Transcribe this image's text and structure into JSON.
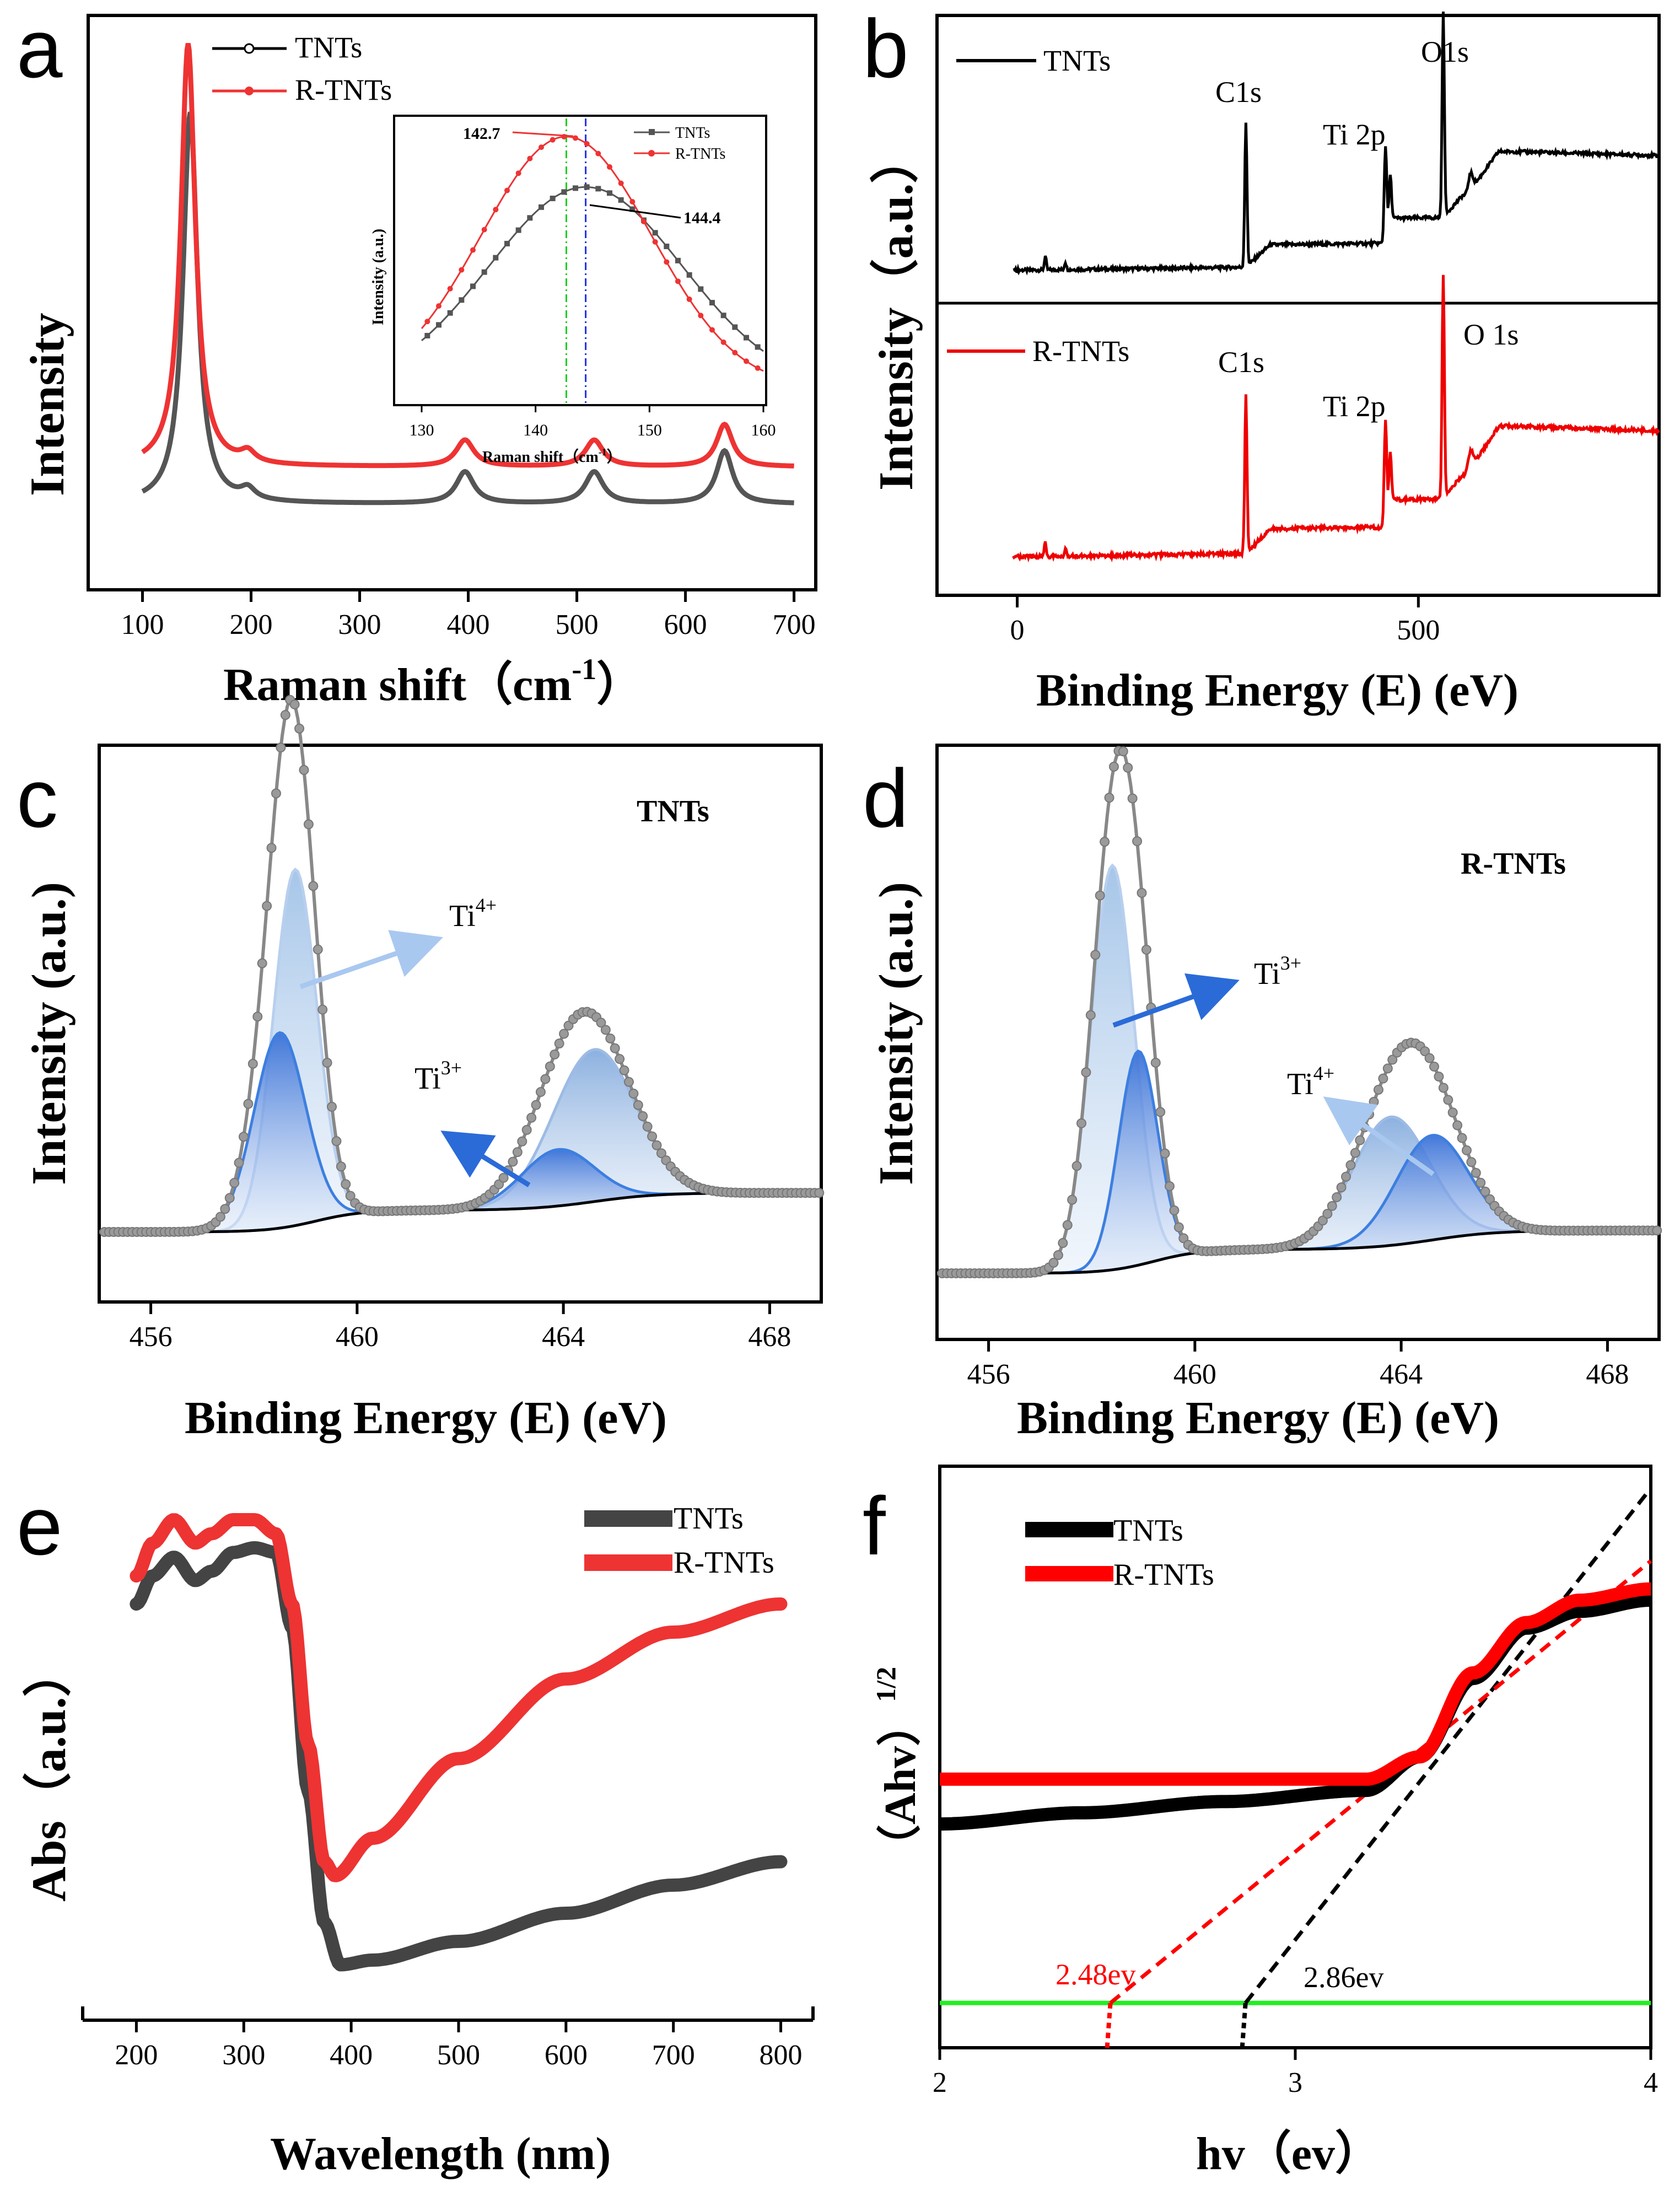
{
  "chart_data": [
    {
      "panel": "a",
      "type": "line",
      "xlabel_main": "Raman shift（cm",
      "xlabel_sup": "-1",
      "xlabel_tail": "）",
      "ylabel": "Intensity",
      "xlim": [
        50,
        720
      ],
      "ylim": [
        0,
        100
      ],
      "xticks": [
        100,
        200,
        300,
        400,
        500,
        600,
        700
      ],
      "series": [
        {
          "name": "TNTs",
          "color": "#555555",
          "baseline": 11,
          "peaks": [
            [
              144,
              74,
              8
            ],
            [
              197,
              2,
              8
            ],
            [
              397,
              6,
              10
            ],
            [
              516,
              6,
              10
            ],
            [
              636,
              10,
              9
            ]
          ]
        },
        {
          "name": "R-TNTs",
          "color": "#ee3333",
          "baseline": 18,
          "peaks": [
            [
              142,
              80,
              8
            ],
            [
              197,
              2,
              8
            ],
            [
              397,
              5,
              10
            ],
            [
              516,
              5,
              10
            ],
            [
              636,
              8,
              9
            ]
          ]
        }
      ],
      "inset": {
        "xlabel": "Raman shift（cm",
        "xlabel_sup": "-1",
        "xlabel_tail": "）",
        "ylabel": "Intensity (a.u.)",
        "xlim": [
          130,
          160
        ],
        "ylim": [
          0,
          1.05
        ],
        "xticks": [
          130,
          140,
          150,
          160
        ],
        "series": [
          {
            "name": "TNTs",
            "color": "#555555",
            "center": 144.4,
            "width": 8.5,
            "peak": 0.8,
            "floor": 0.0
          },
          {
            "name": "R-TNTs",
            "color": "#ee3333",
            "center": 142.7,
            "width": 7.5,
            "peak": 1.0,
            "floor": 0.0
          }
        ],
        "annotations": [
          "142.7",
          "144.4"
        ]
      }
    },
    {
      "panel": "b",
      "type": "line",
      "xlabel": "Binding Energy (E) (eV)",
      "ylabel": "Intensity（a.u.）",
      "xlim": [
        -100,
        800
      ],
      "xticks": [
        0,
        500
      ],
      "series": [
        {
          "name": "TNTs",
          "color": "#000000"
        },
        {
          "name": "R-TNTs",
          "color": "#ee0000"
        }
      ],
      "peak_labels": [
        "C1s",
        "Ti 2p",
        "O1s",
        "C1s",
        "Ti 2p",
        "O 1s"
      ]
    },
    {
      "panel": "c",
      "type": "line",
      "title": "TNTs",
      "xlabel": "Binding Energy (E) (eV)",
      "ylabel": "Intensity (a.u.)",
      "xlim": [
        455,
        469
      ],
      "ylim": [
        -0.1,
        1.15
      ],
      "xticks": [
        456,
        460,
        464,
        468
      ],
      "components": [
        {
          "name": "Ti4+ 2p3/2",
          "center": 458.8,
          "height": 0.82,
          "width": 0.42
        },
        {
          "name": "Ti3+ 2p3/2",
          "center": 458.5,
          "height": 0.45,
          "width": 0.5
        },
        {
          "name": "Ti4+ 2p1/2",
          "center": 464.6,
          "height": 0.35,
          "width": 0.8
        },
        {
          "name": "Ti3+ 2p1/2",
          "center": 463.9,
          "height": 0.13,
          "width": 0.7
        }
      ],
      "annotations": [
        {
          "ion": "Ti",
          "charge": "4+"
        },
        {
          "ion": "Ti",
          "charge": "3+"
        }
      ]
    },
    {
      "panel": "d",
      "type": "line",
      "title": "R-TNTs",
      "xlabel": "Binding Energy (E) (eV)",
      "ylabel": "Intensity (a.u.)",
      "xlim": [
        455,
        469
      ],
      "ylim": [
        -0.1,
        1.15
      ],
      "xticks": [
        456,
        460,
        464,
        468
      ],
      "components": [
        {
          "name": "Ti3+ 2p3/2",
          "center": 458.4,
          "height": 0.85,
          "width": 0.42
        },
        {
          "name": "Ti4+ 2p3/2",
          "center": 458.9,
          "height": 0.45,
          "width": 0.38
        },
        {
          "name": "Ti3+ 2p1/2",
          "center": 463.8,
          "height": 0.27,
          "width": 0.75
        },
        {
          "name": "Ti4+ 2p1/2",
          "center": 464.6,
          "height": 0.22,
          "width": 0.7
        }
      ],
      "annotations": [
        {
          "ion": "Ti",
          "charge": "3+"
        },
        {
          "ion": "Ti",
          "charge": "4+"
        }
      ]
    },
    {
      "panel": "e",
      "type": "line",
      "xlabel": "Wavelength (nm)",
      "ylabel": "Abs（a.u.）",
      "xlim": [
        150,
        830
      ],
      "ylim": [
        0,
        1
      ],
      "xticks": [
        200,
        300,
        400,
        500,
        600,
        700,
        800
      ],
      "series": [
        {
          "name": "TNTs",
          "color": "#444444",
          "x": [
            200,
            215,
            235,
            255,
            270,
            290,
            310,
            330,
            345,
            360,
            375,
            390,
            420,
            500,
            600,
            700,
            800
          ],
          "y": [
            0.8,
            0.86,
            0.9,
            0.85,
            0.87,
            0.91,
            0.92,
            0.91,
            0.75,
            0.4,
            0.12,
            0.03,
            0.04,
            0.08,
            0.14,
            0.2,
            0.25
          ]
        },
        {
          "name": "R-TNTs",
          "color": "#ee3333",
          "x": [
            200,
            215,
            235,
            255,
            270,
            290,
            310,
            330,
            345,
            360,
            375,
            385,
            420,
            500,
            600,
            700,
            800
          ],
          "y": [
            0.86,
            0.93,
            0.98,
            0.93,
            0.95,
            0.98,
            0.98,
            0.95,
            0.8,
            0.5,
            0.25,
            0.22,
            0.3,
            0.47,
            0.64,
            0.74,
            0.8
          ]
        }
      ]
    },
    {
      "panel": "f",
      "type": "line",
      "xlabel": "hv（ev）",
      "ylabel_main": "（Ahv）",
      "ylabel_sup": "1/2",
      "xlim": [
        2,
        4
      ],
      "ylim": [
        0,
        1
      ],
      "xticks": [
        2,
        3,
        4
      ],
      "series": [
        {
          "name": "TNTs",
          "color": "#000000",
          "x": [
            2.0,
            2.4,
            2.8,
            3.2,
            3.35,
            3.5,
            3.65,
            3.8,
            4.0
          ],
          "y": [
            0.4,
            0.42,
            0.44,
            0.46,
            0.52,
            0.66,
            0.75,
            0.78,
            0.8
          ]
        },
        {
          "name": "R-TNTs",
          "color": "#ff0000",
          "x": [
            2.0,
            2.4,
            2.8,
            3.2,
            3.35,
            3.5,
            3.65,
            3.8,
            4.0
          ],
          "y": [
            0.48,
            0.48,
            0.48,
            0.48,
            0.52,
            0.67,
            0.76,
            0.8,
            0.82
          ]
        }
      ],
      "baseline_y": 0.08,
      "tangents": [
        {
          "name": "TNTs fit",
          "color": "#000000",
          "x0": 2.86,
          "x1": 4.0,
          "y1": 1.0
        },
        {
          "name": "R-TNTs fit",
          "color": "#ff0000",
          "x0": 2.48,
          "x1": 4.0,
          "y1": 0.87
        }
      ],
      "annotations": [
        "2.48ev",
        "2.86ev"
      ]
    }
  ],
  "figure": {
    "panel_letters": [
      "a",
      "b",
      "c",
      "d",
      "e",
      "f"
    ],
    "legend_a": [
      "TNTs",
      "R-TNTs"
    ],
    "legend_b_top": "TNTs",
    "legend_b_bottom": "R-TNTs",
    "legend_e": [
      "TNTs",
      "R-TNTs"
    ],
    "legend_f": [
      "TNTs",
      "R-TNTs"
    ]
  }
}
